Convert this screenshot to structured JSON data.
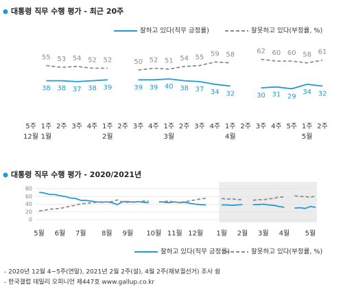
{
  "chart_data": [
    {
      "type": "line",
      "title": "대통령 직무 수행 평가 - 최근 20주",
      "categories": [
        "5주",
        "1주",
        "2주",
        "3주",
        "4주",
        "1주",
        "2주",
        "3주",
        "4주",
        "1주",
        "2주",
        "3주",
        "4주",
        "1주",
        "2주",
        "3주",
        "4주",
        "5주",
        "1주",
        "2주"
      ],
      "month_labels": [
        "12월",
        "1월",
        null,
        null,
        null,
        "2월",
        null,
        null,
        null,
        "3월",
        null,
        null,
        null,
        "4월",
        null,
        null,
        null,
        null,
        "5월",
        null
      ],
      "ylim": [
        0,
        100
      ],
      "series": [
        {
          "name": "잘하고 있다(직무 긍정률)",
          "color": "#1e9ad6",
          "dashed": false,
          "values": [
            null,
            38,
            38,
            37,
            38,
            39,
            null,
            39,
            39,
            40,
            38,
            37,
            34,
            32,
            null,
            30,
            31,
            29,
            34,
            32
          ]
        },
        {
          "name": "잘못하고 있다(부정률, %)",
          "color": "#8c8c8c",
          "dashed": true,
          "values": [
            null,
            55,
            53,
            54,
            52,
            52,
            null,
            50,
            52,
            51,
            54,
            55,
            59,
            58,
            null,
            62,
            60,
            60,
            58,
            61
          ]
        }
      ]
    },
    {
      "type": "line",
      "title": "대통령 직무 수행 평가 - 2020/2021년",
      "categories": [
        "5월",
        null,
        null,
        null,
        "6월",
        null,
        null,
        null,
        "7월",
        null,
        null,
        null,
        null,
        "8월",
        null,
        null,
        null,
        "9월",
        null,
        null,
        null,
        null,
        "10월",
        null,
        null,
        null,
        "11월",
        null,
        null,
        null,
        "12월",
        null,
        null,
        null,
        null,
        "1월",
        null,
        null,
        null,
        "2월",
        null,
        null,
        null,
        "3월",
        null,
        null,
        null,
        "4월",
        null,
        null,
        null,
        null,
        "5월",
        null
      ],
      "ylim": [
        0,
        80
      ],
      "yticks": [
        0,
        20,
        40,
        60,
        80
      ],
      "grid": true,
      "series": [
        {
          "name": "잘하고 있다(직무 긍정률)",
          "color": "#1e9ad6",
          "dashed": false,
          "values": [
            71,
            69,
            65,
            65,
            62,
            60,
            56,
            55,
            50,
            50,
            48,
            46,
            45,
            46,
            44,
            39,
            47,
            47,
            45,
            47,
            45,
            44,
            null,
            47,
            45,
            44,
            46,
            44,
            45,
            42,
            40,
            39,
            38,
            null,
            null,
            38,
            38,
            37,
            38,
            39,
            null,
            39,
            39,
            40,
            38,
            37,
            34,
            32,
            null,
            30,
            31,
            29,
            34,
            32
          ]
        },
        {
          "name": "잘못하고 있다(부정률, %)",
          "color": "#8c8c8c",
          "dashed": true,
          "values": [
            23,
            24,
            27,
            28,
            29,
            32,
            35,
            37,
            41,
            42,
            44,
            45,
            46,
            46,
            47,
            51,
            45,
            45,
            46,
            46,
            48,
            48,
            null,
            45,
            47,
            48,
            45,
            45,
            46,
            49,
            51,
            54,
            55,
            null,
            null,
            55,
            53,
            54,
            52,
            52,
            null,
            50,
            52,
            51,
            54,
            55,
            59,
            58,
            null,
            62,
            60,
            60,
            58,
            61
          ]
        }
      ]
    }
  ],
  "notes": [
    "- 2020년 12월 4~5주(연말), 2021년 2월 2주(설), 4월 2주(재보궐선거) 조사 쉼",
    "- 한국갤럽 데일리 오피니언 제447호 www.gallup.co.kr"
  ]
}
